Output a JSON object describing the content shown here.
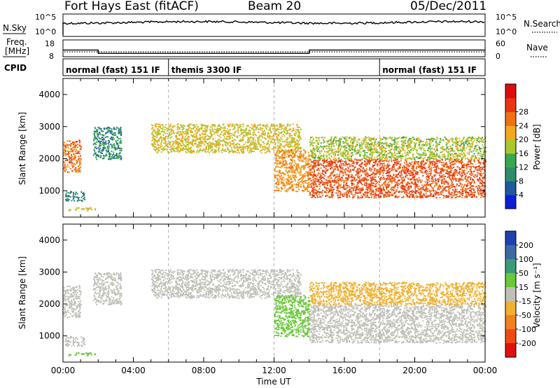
{
  "header": {
    "title": "Fort Hays East (fitACF)",
    "beam": "Beam 20",
    "date": "05/Dec/2011"
  },
  "summary": {
    "nsky_label": "N.Sky",
    "nsearch_label": "N.Search",
    "nsky_ticks": [
      "10^5",
      "10^0"
    ],
    "nsearch_ticks": [
      "10^5",
      "10^0"
    ],
    "freq_label_1": "Freq.",
    "freq_label_2": "[MHz]",
    "freq_ticks": [
      "18",
      "8"
    ],
    "nave_label": "Nave",
    "nave_ticks": [
      "60",
      "0"
    ],
    "cpid_label": "CPID",
    "cpid_segments": [
      {
        "label": "normal (fast) 151 IF",
        "start_hour": 0,
        "end_hour": 6
      },
      {
        "label": "themis 3300 IF",
        "start_hour": 6,
        "end_hour": 18
      },
      {
        "label": "normal (fast) 151 IF",
        "start_hour": 18,
        "end_hour": 24
      }
    ],
    "freq_mhz_steps": [
      {
        "start_hour": 0,
        "end_hour": 2,
        "value": 12
      },
      {
        "start_hour": 2,
        "end_hour": 14,
        "value": 10
      },
      {
        "start_hour": 14,
        "end_hour": 24,
        "value": 12
      }
    ]
  },
  "power_panel": {
    "ylabel": "Slant Range [km]",
    "yticks": [
      "1000",
      "2000",
      "3000",
      "4000"
    ],
    "colorbar_label": "Power [dB]",
    "colorbar_ticks": [
      "4",
      "8",
      "12",
      "16",
      "20",
      "24",
      "28"
    ],
    "colorbar_colors": [
      "#0a1fd8",
      "#1e5a9c",
      "#2f8a6e",
      "#3aa84a",
      "#a9c830",
      "#f2a81e",
      "#f07016",
      "#e83414",
      "#dc0c0c"
    ]
  },
  "velocity_panel": {
    "ylabel": "Slant Range [km]",
    "yticks": [
      "1000",
      "2000",
      "3000",
      "4000"
    ],
    "colorbar_label": "Velocity [m s⁻¹]",
    "colorbar_ticks": [
      "200",
      "100",
      "50",
      "15",
      "-15",
      "-50",
      "-100",
      "-200"
    ],
    "colorbar_colors": [
      "#2040b0",
      "#3a6aa0",
      "#3a9a7a",
      "#6ac83a",
      "#c0c0b8",
      "#f0b030",
      "#f08020",
      "#f04a14",
      "#e01010"
    ]
  },
  "xaxis": {
    "label": "Time UT",
    "ticks": [
      "00:00",
      "04:00",
      "08:00",
      "12:00",
      "16:00",
      "20:00",
      "00:00"
    ]
  },
  "chart_data": {
    "type": "heatmap",
    "title": "Fort Hays East (fitACF)",
    "xlabel": "Time UT",
    "ylabel": "Slant Range [km]",
    "xlim_hours": [
      0,
      24
    ],
    "ylim_km": [
      180,
      4500
    ],
    "power_colorbar_db": [
      4,
      8,
      12,
      16,
      20,
      24,
      28
    ],
    "velocity_colorbar_ms": [
      -200,
      -100,
      -50,
      -15,
      15,
      50,
      100,
      200
    ],
    "backscatter_regions": [
      {
        "name": "early-band",
        "hours": [
          0.0,
          1.0
        ],
        "range_km": [
          1600,
          2600
        ],
        "power_db": 26,
        "velocity_ms": 0
      },
      {
        "name": "early-near",
        "hours": [
          0.1,
          1.2
        ],
        "range_km": [
          700,
          1000
        ],
        "power_db": 9,
        "velocity_ms": 0
      },
      {
        "name": "near-low",
        "hours": [
          0.3,
          1.8
        ],
        "range_km": [
          400,
          500
        ],
        "power_db": 20,
        "velocity_ms": 40
      },
      {
        "name": "morning-patch",
        "hours": [
          1.7,
          3.3
        ],
        "range_km": [
          2000,
          3000
        ],
        "power_db": 10,
        "velocity_ms": 0
      },
      {
        "name": "midday-trace",
        "hours": [
          5.0,
          13.5
        ],
        "range_km": [
          2200,
          3100
        ],
        "power_db": 20,
        "velocity_ms": 0
      },
      {
        "name": "descending-trace",
        "hours": [
          12.0,
          14.0
        ],
        "range_km": [
          1000,
          2300
        ],
        "power_db": 24,
        "velocity_ms": 35
      },
      {
        "name": "late-strong",
        "hours": [
          14.0,
          24.0
        ],
        "range_km": [
          800,
          2000
        ],
        "power_db": 28,
        "velocity_ms": 0
      },
      {
        "name": "late-upper",
        "hours": [
          14.0,
          24.0
        ],
        "range_km": [
          2000,
          2700
        ],
        "power_db": 18,
        "velocity_ms": -40
      }
    ]
  }
}
